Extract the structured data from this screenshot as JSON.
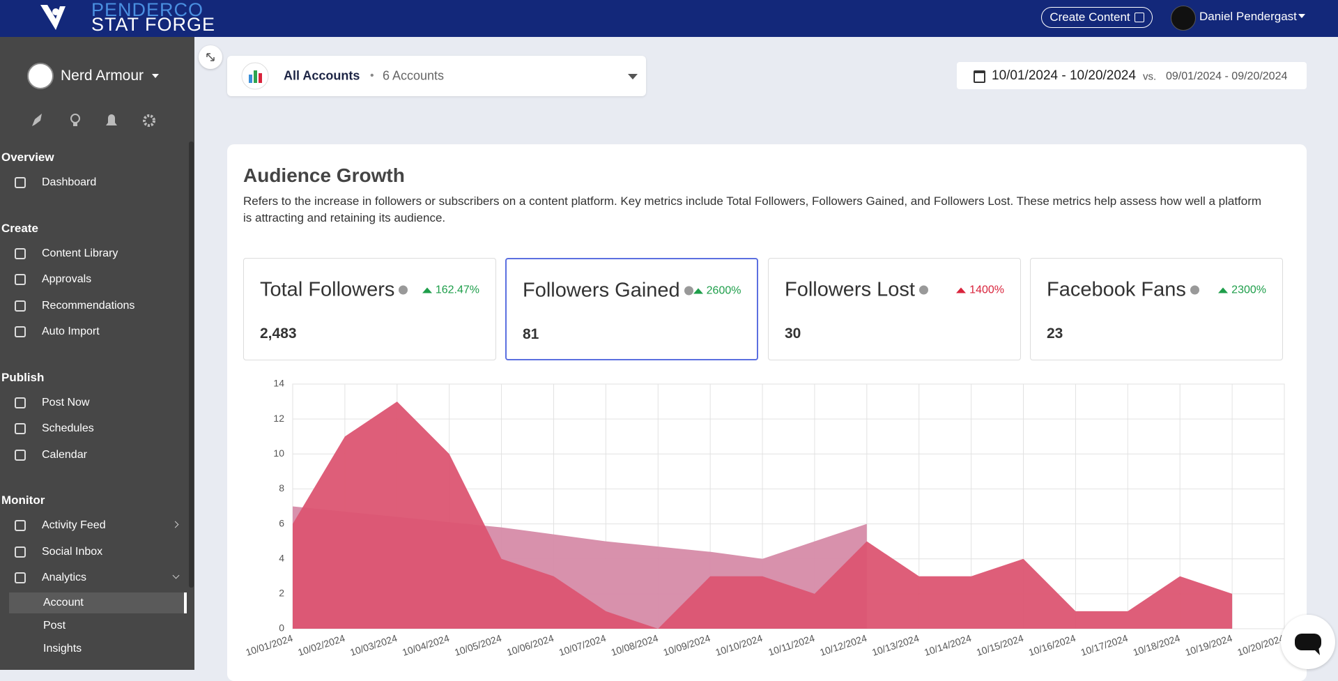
{
  "header": {
    "logo_line1": "PENDERCO",
    "logo_line2": "STAT FORGE",
    "create_button": "Create Content",
    "user": "Daniel Pendergast"
  },
  "sidebar": {
    "account": "Nerd Armour",
    "sections": [
      {
        "title": "Overview",
        "items": [
          "Dashboard"
        ]
      },
      {
        "title": "Create",
        "items": [
          "Content Library",
          "Approvals",
          "Recommendations",
          "Auto Import"
        ]
      },
      {
        "title": "Publish",
        "items": [
          "Post Now",
          "Schedules",
          "Calendar"
        ]
      },
      {
        "title": "Monitor",
        "items": [
          "Activity Feed",
          "Social Inbox",
          "Analytics"
        ]
      }
    ],
    "analytics_submenu": [
      "Account",
      "Post",
      "Insights"
    ],
    "active_index": 0
  },
  "account_selector": {
    "label": "All Accounts",
    "separator": "•",
    "count": "6 Accounts"
  },
  "date_range": {
    "current": "10/01/2024 - 10/20/2024",
    "vs": "vs.",
    "previous": "09/01/2024 - 09/20/2024"
  },
  "card": {
    "title": "Audience Growth",
    "description": "Refers to the increase in followers or subscribers on a content platform. Key metrics include Total Followers, Followers Gained, and Followers Lost. These metrics help assess how well a platform is attracting and retaining its audience.",
    "selected_index": 1,
    "metrics": [
      {
        "label": "Total Followers",
        "change": "162.47%",
        "change_color": "#1e9e4a",
        "value": "2,483"
      },
      {
        "label": "Followers Gained",
        "change": "2600%",
        "change_color": "#1e9e4a",
        "value": "81"
      },
      {
        "label": "Followers Lost",
        "change": "1400%",
        "change_color": "#d9243c",
        "value": "30"
      },
      {
        "label": "Facebook Fans",
        "change": "2300%",
        "change_color": "#1e9e4a",
        "value": "23"
      }
    ]
  },
  "chart": {
    "type": "area",
    "categories": [
      "10/01/2024",
      "10/02/2024",
      "10/03/2024",
      "10/04/2024",
      "10/05/2024",
      "10/06/2024",
      "10/07/2024",
      "10/08/2024",
      "10/09/2024",
      "10/10/2024",
      "10/11/2024",
      "10/12/2024",
      "10/13/2024",
      "10/14/2024",
      "10/15/2024",
      "10/16/2024",
      "10/17/2024",
      "10/18/2024",
      "10/19/2024",
      "10/20/2024"
    ],
    "series": [
      {
        "color": "#d68ba8",
        "values": [
          7,
          6.7,
          6.4,
          6.1,
          5.8,
          5.4,
          5.0,
          4.7,
          4.4,
          4.0,
          5.0,
          6.0,
          null,
          null,
          null,
          null,
          null,
          null,
          null,
          null
        ]
      },
      {
        "color": "#dc5572",
        "values": [
          6,
          11,
          13,
          10,
          4,
          3,
          1,
          0,
          3,
          3,
          2,
          5,
          3,
          3,
          4,
          1,
          1,
          3,
          2,
          null
        ]
      }
    ],
    "ylim": [
      0,
      14
    ],
    "yticks": [
      0,
      2,
      4,
      6,
      8,
      10,
      12,
      14
    ],
    "grid": true
  }
}
